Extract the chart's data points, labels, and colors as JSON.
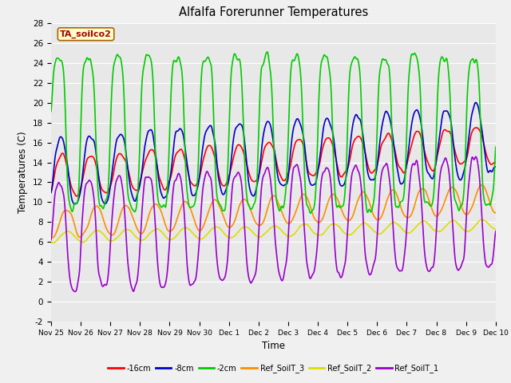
{
  "title": "Alfalfa Forerunner Temperatures",
  "xlabel": "Time",
  "ylabel": "Temperatures (C)",
  "annotation": "TA_soilco2",
  "ylim": [
    -2,
    28
  ],
  "fig_bg": "#f0f0f0",
  "plot_bg": "#e8e8e8",
  "series": {
    "neg16cm": {
      "color": "#ff0000",
      "label": "-16cm",
      "linewidth": 1.2
    },
    "neg8cm": {
      "color": "#0000cc",
      "label": "-8cm",
      "linewidth": 1.2
    },
    "neg2cm": {
      "color": "#00cc00",
      "label": "-2cm",
      "linewidth": 1.2
    },
    "ref3": {
      "color": "#ff8c00",
      "label": "Ref_SoilT_3",
      "linewidth": 1.2
    },
    "ref2": {
      "color": "#dddd00",
      "label": "Ref_SoilT_2",
      "linewidth": 1.2
    },
    "ref1": {
      "color": "#9900cc",
      "label": "Ref_SoilT_1",
      "linewidth": 1.2
    }
  },
  "xtick_labels": [
    "Nov 25",
    "Nov 26",
    "Nov 27",
    "Nov 28",
    "Nov 29",
    "Nov 30",
    "Dec 1",
    "Dec 2",
    "Dec 3",
    "Dec 4",
    "Dec 5",
    "Dec 6",
    "Dec 7",
    "Dec 8",
    "Dec 9",
    "Dec 10"
  ],
  "ytick_values": [
    -2,
    0,
    2,
    4,
    6,
    8,
    10,
    12,
    14,
    16,
    18,
    20,
    22,
    24,
    26,
    28
  ],
  "gridcolor": "#ffffff",
  "grid_linewidth": 0.8
}
